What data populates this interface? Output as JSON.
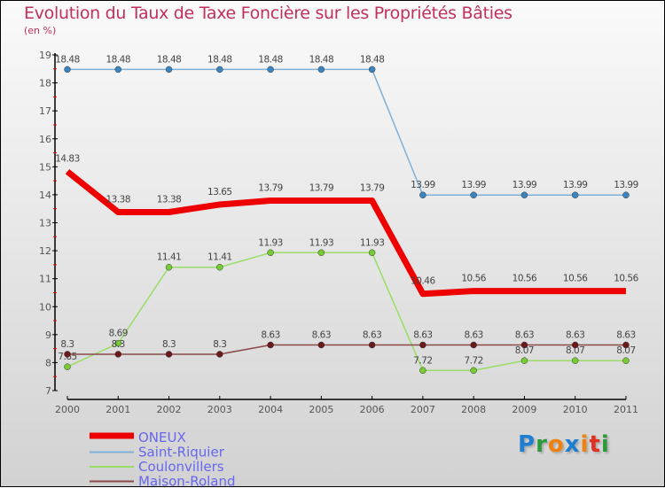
{
  "title": "Evolution du Taux de Taxe Foncière sur les Propriétés Bâties",
  "subtitle": "(en %)",
  "logo": {
    "letters": [
      "P",
      "r",
      "o",
      "x",
      "i",
      "t",
      "i"
    ],
    "colors": [
      "#1e7fd0",
      "#2a9a3a",
      "#f08010",
      "#1e7fd0",
      "#f08010",
      "#e03020",
      "#2a9a3a"
    ]
  },
  "chart_data": {
    "type": "line",
    "title": "Evolution du Taux de Taxe Foncière sur les Propriétés Bâties",
    "ylabel": "(en %)",
    "xlabel": "",
    "x": [
      "2000",
      "2001",
      "2002",
      "2003",
      "2004",
      "2005",
      "2006",
      "2007",
      "2008",
      "2009",
      "2010",
      "2011"
    ],
    "ylim": [
      7,
      19
    ],
    "yticks": [
      7,
      8,
      9,
      10,
      11,
      12,
      13,
      14,
      15,
      16,
      17,
      18,
      19
    ],
    "legend_position": "bottom-left",
    "series": [
      {
        "name": "ONEUX",
        "color": "#ee0000",
        "width": 7,
        "values": [
          14.83,
          13.38,
          13.38,
          13.65,
          13.79,
          13.79,
          13.79,
          10.46,
          10.56,
          10.56,
          10.56,
          10.56
        ]
      },
      {
        "name": "Saint-Riquier",
        "color": "#7fb0d8",
        "marker": "#3a85c0",
        "width": 1.5,
        "values": [
          18.48,
          18.48,
          18.48,
          18.48,
          18.48,
          18.48,
          18.48,
          13.99,
          13.99,
          13.99,
          13.99,
          13.99
        ]
      },
      {
        "name": "Coulonvillers",
        "color": "#99dd66",
        "marker": "#77cc33",
        "width": 1.5,
        "values": [
          7.85,
          8.69,
          11.41,
          11.41,
          11.93,
          11.93,
          11.93,
          7.72,
          7.72,
          8.07,
          8.07,
          8.07
        ]
      },
      {
        "name": "Maison-Roland",
        "color": "#8a4a4a",
        "marker": "#6a1a1a",
        "width": 1.5,
        "values": [
          8.3,
          8.3,
          8.3,
          8.3,
          8.63,
          8.63,
          8.63,
          8.63,
          8.63,
          8.63,
          8.63,
          8.63
        ]
      }
    ]
  }
}
